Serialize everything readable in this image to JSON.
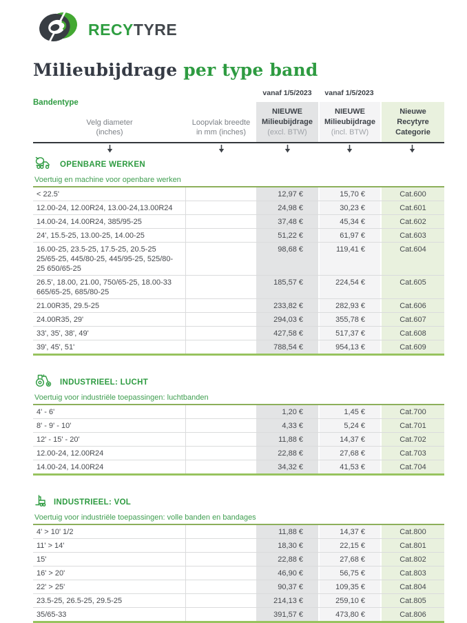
{
  "brand": {
    "logo_green": "RECY",
    "logo_dark": "TYRE"
  },
  "title": {
    "part1": "Milieubijdrage",
    "part2": " per type band"
  },
  "colors": {
    "brand_green": "#2f9e41",
    "table_border_green": "#97c35e",
    "col_excl_bg": "#e3e4e5",
    "col_incl_bg": "#f4f4f5",
    "col_cat_bg": "#e9f1de"
  },
  "table_header": {
    "bandentype": "Bandentype",
    "velg_line1": "Velg diameter",
    "velg_line2": "(inches)",
    "loopvlak_line1": "Loopvlak breedte",
    "loopvlak_line2": "in mm  (inches)",
    "vanaf_excl": "vanaf 1/5/2023",
    "vanaf_incl": "vanaf 1/5/2023",
    "excl_line1": "NIEUWE",
    "excl_line2": "Milieubijdrage",
    "excl_line3": "(excl. BTW)",
    "incl_line1": "NIEUWE",
    "incl_line2": "Milieubijdrage",
    "incl_line3": "(incl. BTW)",
    "cat_line1": "Nieuwe",
    "cat_line2": "Recytyre",
    "cat_line3": "Categorie"
  },
  "sections": [
    {
      "icon": "mixer-truck-icon",
      "title": "OPENBARE WERKEN",
      "subtitle": "Voertuig en machine voor openbare werken",
      "rows": [
        {
          "type": "< 22.5'",
          "excl": "12,97 €",
          "incl": "15,70 €",
          "cat": "Cat.600"
        },
        {
          "type": "12.00-24, 12.00R24, 13.00-24,13.00R24",
          "excl": "24,98 €",
          "incl": "30,23 €",
          "cat": "Cat.601"
        },
        {
          "type": "14.00-24, 14.00R24, 385/95-25",
          "excl": "37,48 €",
          "incl": "45,34 €",
          "cat": "Cat.602"
        },
        {
          "type": "24', 15.5-25, 13.00-25, 14.00-25",
          "excl": "51,22 €",
          "incl": "61,97 €",
          "cat": "Cat.603"
        },
        {
          "type": "16.00-25, 23.5-25, 17.5-25, 20.5-25 25/65-25, 445/80-25, 445/95-25, 525/80-25 650/65-25",
          "excl": "98,68 €",
          "incl": "119,41 €",
          "cat": "Cat.604"
        },
        {
          "type": "26.5', 18.00, 21.00, 750/65-25, 18.00-33 665/65-25, 685/80-25",
          "excl": "185,57 €",
          "incl": "224,54 €",
          "cat": "Cat.605"
        },
        {
          "type": "21.00R35, 29.5-25",
          "excl": "233,82 €",
          "incl": "282,93 €",
          "cat": "Cat.606"
        },
        {
          "type": "24.00R35, 29'",
          "excl": "294,03 €",
          "incl": "355,78 €",
          "cat": "Cat.607"
        },
        {
          "type": "33', 35', 38', 49'",
          "excl": "427,58 €",
          "incl": "517,37 €",
          "cat": "Cat.608"
        },
        {
          "type": "39', 45', 51'",
          "excl": "788,54 €",
          "incl": "954,13 €",
          "cat": "Cat.609"
        }
      ]
    },
    {
      "icon": "tractor-icon",
      "title": "INDUSTRIEEL: LUCHT",
      "subtitle": "Voertuig voor industriële toepassingen: luchtbanden",
      "rows": [
        {
          "type": "4' - 6'",
          "excl": "1,20 €",
          "incl": "1,45 €",
          "cat": "Cat.700"
        },
        {
          "type": "8' - 9' - 10'",
          "excl": "4,33 €",
          "incl": "5,24 €",
          "cat": "Cat.701"
        },
        {
          "type": "12' - 15' - 20'",
          "excl": "11,88 €",
          "incl": "14,37 €",
          "cat": "Cat.702"
        },
        {
          "type": "12.00-24, 12.00R24",
          "excl": "22,88 €",
          "incl": "27,68 €",
          "cat": "Cat.703"
        },
        {
          "type": "14.00-24, 14.00R24",
          "excl": "34,32 €",
          "incl": "41,53 €",
          "cat": "Cat.704"
        }
      ]
    },
    {
      "icon": "forklift-icon",
      "title": "INDUSTRIEEL: VOL",
      "subtitle": "Voertuig voor industriële toepassingen: volle banden en bandages",
      "rows": [
        {
          "type": "4' > 10' 1/2",
          "excl": "11,88 €",
          "incl": "14,37 €",
          "cat": "Cat.800"
        },
        {
          "type": "11' > 14'",
          "excl": "18,30 €",
          "incl": "22,15 €",
          "cat": "Cat.801"
        },
        {
          "type": "15'",
          "excl": "22,88 €",
          "incl": "27,68 €",
          "cat": "Cat.802"
        },
        {
          "type": "16' > 20'",
          "excl": "46,90 €",
          "incl": "56,75 €",
          "cat": "Cat.803"
        },
        {
          "type": "22' > 25'",
          "excl": "90,37 €",
          "incl": "109,35 €",
          "cat": "Cat.804"
        },
        {
          "type": "23.5-25, 26.5-25, 29.5-25",
          "excl": "214,13 €",
          "incl": "259,10 €",
          "cat": "Cat.805"
        },
        {
          "type": "35/65-33",
          "excl": "391,57 €",
          "incl": "473,80 €",
          "cat": "Cat.806"
        }
      ]
    }
  ]
}
